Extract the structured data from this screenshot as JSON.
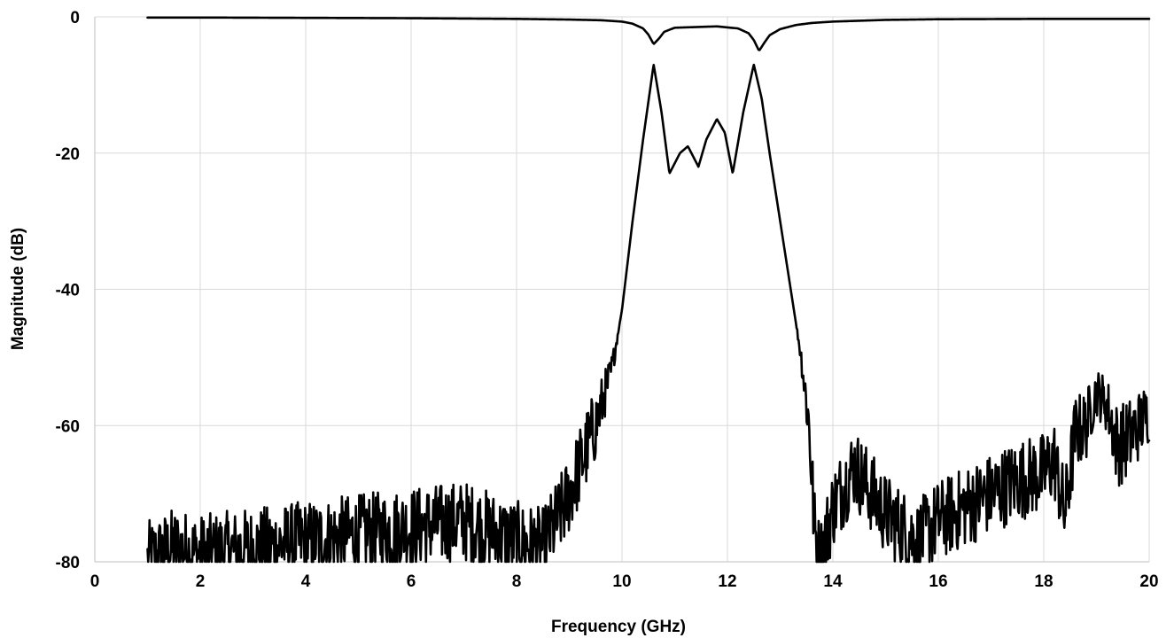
{
  "chart_data": {
    "type": "line",
    "title": "",
    "xlabel": "Frequency (GHz)",
    "ylabel": "Magnitude (dB)",
    "xlim": [
      0,
      20
    ],
    "ylim": [
      -80,
      0
    ],
    "x_ticks": [
      0,
      2,
      4,
      6,
      8,
      10,
      12,
      14,
      16,
      18,
      20
    ],
    "x_tick_labels": [
      "0",
      "2",
      "4",
      "6",
      "8",
      "10",
      "12",
      "14",
      "16",
      "18",
      "20"
    ],
    "y_ticks": [
      0,
      -20,
      -40,
      -60,
      -80
    ],
    "y_tick_labels": [
      "0",
      "-20",
      "-40",
      "-60",
      "-80"
    ],
    "grid": true,
    "legend": "none",
    "line_color": "#000000",
    "grid_color": "#d9d9d9",
    "series": [
      {
        "x": [
          1.0,
          2.0,
          4.0,
          6.0,
          8.0,
          9.0,
          9.6,
          10.0,
          10.2,
          10.4,
          10.5,
          10.6,
          10.7,
          10.8,
          11.0,
          11.4,
          11.8,
          12.2,
          12.4,
          12.5,
          12.6,
          12.7,
          12.8,
          13.0,
          13.3,
          13.6,
          14.0,
          15.0,
          16.0,
          18.0,
          19.0,
          20.0
        ],
        "y": [
          -0.1,
          -0.1,
          -0.15,
          -0.2,
          -0.3,
          -0.4,
          -0.5,
          -0.7,
          -1.0,
          -1.7,
          -2.6,
          -4.0,
          -3.2,
          -2.2,
          -1.6,
          -1.5,
          -1.4,
          -1.7,
          -2.4,
          -3.4,
          -5.0,
          -3.8,
          -2.7,
          -1.8,
          -1.2,
          -0.9,
          -0.7,
          -0.45,
          -0.35,
          -0.3,
          -0.3,
          -0.3
        ]
      },
      {
        "x": [
          1.0,
          1.5,
          2.0,
          3.0,
          4.0,
          5.0,
          6.0,
          7.0,
          8.0,
          8.5,
          8.9,
          9.2,
          9.5,
          9.8,
          10.0,
          10.2,
          10.4,
          10.6,
          10.75,
          10.9,
          11.1,
          11.25,
          11.45,
          11.6,
          11.8,
          11.95,
          12.1,
          12.3,
          12.5,
          12.65,
          12.8,
          13.0,
          13.2,
          13.4,
          13.55,
          13.65,
          13.75,
          14.0,
          14.4,
          15.0,
          15.6,
          16.0,
          16.5,
          17.0,
          17.5,
          18.0,
          18.2,
          18.4,
          18.6,
          18.8,
          19.0,
          19.2,
          19.4,
          19.6,
          19.8,
          20.0
        ],
        "y": [
          -80,
          -78,
          -79,
          -78,
          -77,
          -76,
          -75,
          -74,
          -77,
          -78,
          -72,
          -66,
          -60,
          -52,
          -43,
          -30,
          -18,
          -7,
          -14,
          -23,
          -20,
          -19,
          -22,
          -18,
          -15,
          -17,
          -23,
          -14,
          -7,
          -12,
          -20,
          -30,
          -40,
          -50,
          -60,
          -75,
          -80,
          -72,
          -66,
          -73,
          -77,
          -74,
          -72,
          -70,
          -68,
          -67,
          -65,
          -73,
          -61,
          -60,
          -55,
          -57,
          -63,
          -62,
          -60,
          -58
        ]
      }
    ]
  }
}
